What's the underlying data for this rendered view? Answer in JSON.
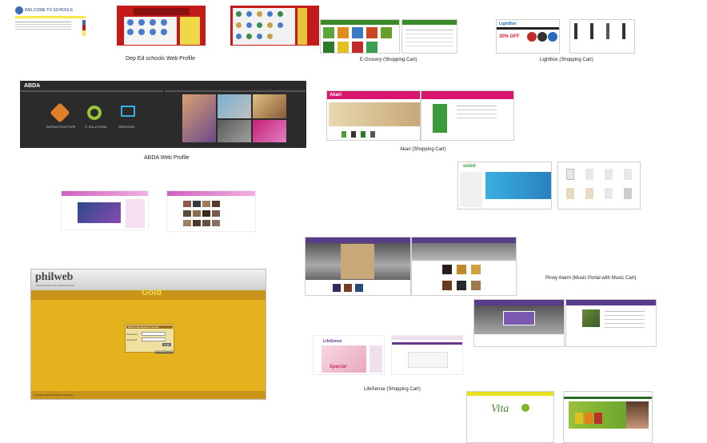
{
  "captions": {
    "deped": "Dep Ed schools Web Profile",
    "egrocery": "E-Grocery (Shopping Cart)",
    "lightbox": "Lightbox (Shopping Cart)",
    "abda": "ABDA Web Profile",
    "akari": "Akari (Shopping Cart)",
    "pinoy": "Pinoy Alarm (Music Portal with Music Cart)",
    "lifesense": "LifeSense (Shopping Cart)"
  },
  "philweb": {
    "logo": "philweb",
    "sub": "DATA PRODUCTS CORPORATION",
    "gold": "Gold",
    "panel_title": "Partner Management System",
    "username_label": "Username",
    "password_label": "Password",
    "login": "Login",
    "forgot": "Forgot Password",
    "footer": "Copyright 2011 PhilWeb Corporation"
  },
  "deped_banner": "WELCOME TO SCHOOLS",
  "abda_logo": "ABDA",
  "akari_logo": "Akari",
  "lightbox_logo": "LightBox",
  "lightbox_sale": "30% OFF",
  "oxled_logo": "oxled",
  "lifesense_logo": "LifeSense",
  "lifesense_special": "Special",
  "vita_logo": "Vita",
  "abda_services": [
    "INFRASTRUCTURE",
    "IT SOLUTIONS",
    "SERVICES"
  ],
  "colors": {
    "gold": "#e3b21c",
    "red": "#c41a1a",
    "akari": "#d9166e",
    "purple": "#5a3d8a",
    "green": "#7cb928"
  }
}
